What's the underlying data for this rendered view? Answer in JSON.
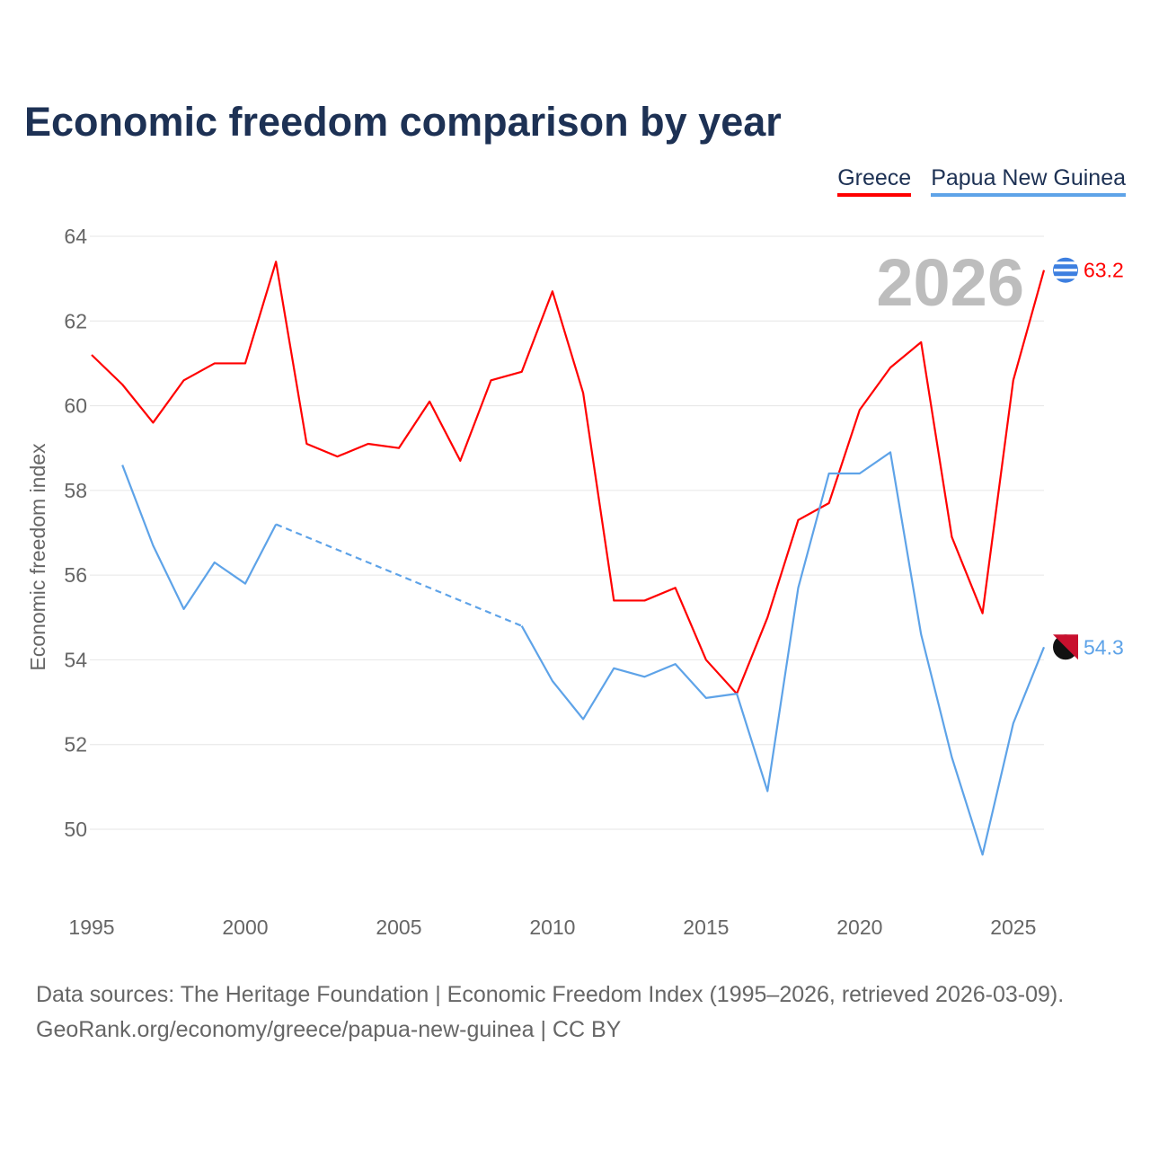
{
  "title": "Economic freedom comparison by year",
  "footer": {
    "line1": "Data sources: The Heritage Foundation | Economic Freedom Index (1995–2026, retrieved 2026-03-09).",
    "line2": "GeoRank.org/economy/greece/papua-new-guinea | CC BY"
  },
  "chart_data": {
    "type": "line",
    "title": "Economic freedom comparison by year",
    "xlabel": "",
    "ylabel": "Economic freedom index",
    "year_label": "2026",
    "x": [
      1995,
      1996,
      1997,
      1998,
      1999,
      2000,
      2001,
      2002,
      2003,
      2004,
      2005,
      2006,
      2007,
      2008,
      2009,
      2010,
      2011,
      2012,
      2013,
      2014,
      2015,
      2016,
      2017,
      2018,
      2019,
      2020,
      2021,
      2022,
      2023,
      2024,
      2025,
      2026
    ],
    "xlim": [
      1995,
      2026
    ],
    "ylim": [
      48,
      64
    ],
    "xticks": [
      1995,
      2000,
      2005,
      2010,
      2015,
      2020,
      2025
    ],
    "yticks": [
      50,
      52,
      54,
      56,
      58,
      60,
      62,
      64
    ],
    "grid": true,
    "legend_position": "top-right",
    "series": [
      {
        "name": "Greece",
        "color": "#ff0000",
        "end_label": "63.2",
        "flag": "greece-flag",
        "values": [
          61.2,
          60.5,
          59.6,
          60.6,
          61.0,
          61.0,
          63.4,
          59.1,
          58.8,
          59.1,
          59.0,
          60.1,
          58.7,
          60.6,
          60.8,
          62.7,
          60.3,
          55.4,
          55.4,
          55.7,
          54.0,
          53.2,
          55.0,
          57.3,
          57.7,
          59.9,
          60.9,
          61.5,
          56.9,
          55.1,
          60.6,
          63.2
        ]
      },
      {
        "name": "Papua New Guinea",
        "color": "#5ea3e8",
        "end_label": "54.3",
        "flag": "papua-new-guinea-flag",
        "values": [
          null,
          58.6,
          56.7,
          55.2,
          56.3,
          55.8,
          57.2,
          null,
          null,
          null,
          null,
          null,
          null,
          null,
          54.8,
          53.5,
          52.6,
          53.8,
          53.6,
          53.9,
          53.1,
          53.2,
          50.9,
          55.7,
          58.4,
          58.4,
          58.9,
          54.6,
          51.7,
          49.4,
          52.5,
          54.3
        ]
      }
    ]
  }
}
